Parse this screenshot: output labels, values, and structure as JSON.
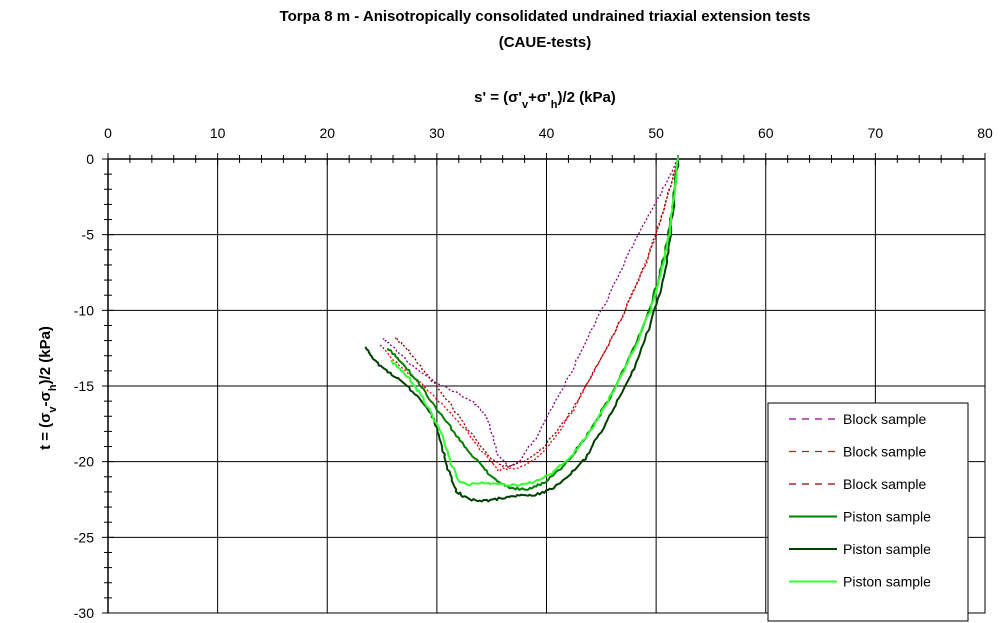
{
  "chart_data": {
    "type": "line",
    "title_line1": "Torpa 8 m - Anisotropically consolidated undrained triaxial extension tests",
    "title_line2": "(CAUE-tests)",
    "xlabel": "s' = (σ'v+σ'h)/2  (kPa)",
    "ylabel": "t = (σv-σh)/2  (kPa)",
    "xlim": [
      0,
      80
    ],
    "ylim": [
      -30,
      0
    ],
    "x_ticks": [
      "0",
      "10",
      "20",
      "30",
      "40",
      "50",
      "60",
      "70",
      "80"
    ],
    "y_ticks": [
      "0",
      "-5",
      "-10",
      "-15",
      "-20",
      "-25",
      "-30"
    ],
    "x_axis_position": "top",
    "grid": true,
    "legend_position": "bottom-right",
    "series": [
      {
        "name": "Block sample",
        "color": "#8B008B",
        "style": "dashed",
        "x": [
          52.0,
          51.0,
          49.5,
          48.0,
          46.5,
          45.0,
          43.5,
          42.0,
          40.5,
          39.0,
          37.5,
          36.5,
          35.5,
          35.0,
          34.5,
          33.5,
          32.0,
          30.0,
          28.0,
          26.5,
          25.5,
          25.0
        ],
        "y": [
          0.0,
          -1.5,
          -3.5,
          -5.5,
          -7.8,
          -10.0,
          -12.2,
          -14.5,
          -16.5,
          -18.5,
          -20.0,
          -20.3,
          -19.5,
          -18.0,
          -17.0,
          -16.2,
          -15.5,
          -14.8,
          -13.8,
          -12.8,
          -12.1,
          -11.8
        ]
      },
      {
        "name": "Block sample",
        "color": "#FF0000",
        "style": "dashed",
        "x": [
          52.0,
          51.0,
          50.0,
          48.5,
          47.0,
          45.5,
          44.0,
          42.5,
          41.0,
          39.5,
          38.0,
          36.5,
          35.5,
          35.0,
          34.0,
          32.5,
          30.5,
          28.5,
          26.8,
          25.5,
          24.8
        ],
        "y": [
          0.0,
          -2.5,
          -5.0,
          -7.8,
          -10.3,
          -12.5,
          -14.5,
          -16.5,
          -18.2,
          -19.5,
          -20.3,
          -20.5,
          -20.5,
          -20.0,
          -19.2,
          -17.8,
          -16.2,
          -14.8,
          -13.8,
          -12.8,
          -12.2
        ]
      },
      {
        "name": "Block sample",
        "color": "#8B0000",
        "style": "dashed",
        "x": [
          52.0,
          51.3,
          50.2,
          49.0,
          47.5,
          46.0,
          44.5,
          43.0,
          41.5,
          40.0,
          38.5,
          37.0,
          36.0,
          35.0,
          33.5,
          32.0,
          30.5,
          29.0,
          27.8,
          26.8,
          26.2
        ],
        "y": [
          0.0,
          -1.8,
          -4.5,
          -7.0,
          -9.5,
          -11.8,
          -13.8,
          -15.8,
          -17.5,
          -18.8,
          -19.8,
          -20.2,
          -20.3,
          -19.8,
          -18.5,
          -17.0,
          -15.5,
          -14.2,
          -13.0,
          -12.2,
          -11.8
        ]
      },
      {
        "name": "Piston sample",
        "color": "#008000",
        "style": "solid",
        "x": [
          52.0,
          51.5,
          51.0,
          50.2,
          49.0,
          47.5,
          46.0,
          44.5,
          43.0,
          41.5,
          40.0,
          38.5,
          37.0,
          36.0,
          35.0,
          34.0,
          32.5,
          31.0,
          29.5,
          28.0,
          26.5,
          25.5
        ],
        "y": [
          0.0,
          -3.0,
          -5.5,
          -8.0,
          -10.8,
          -13.2,
          -15.5,
          -17.3,
          -19.0,
          -20.3,
          -21.3,
          -21.8,
          -21.8,
          -21.5,
          -21.0,
          -20.2,
          -19.0,
          -17.5,
          -16.0,
          -14.5,
          -13.2,
          -12.5
        ]
      },
      {
        "name": "Piston sample",
        "color": "#004000",
        "style": "solid",
        "x": [
          52.0,
          51.6,
          51.2,
          50.5,
          49.3,
          48.0,
          46.5,
          45.0,
          43.5,
          42.0,
          40.5,
          39.0,
          37.5,
          36.0,
          34.5,
          33.0,
          31.8,
          31.0,
          30.3,
          29.5,
          28.0,
          26.5,
          25.0,
          24.0,
          23.5
        ],
        "y": [
          0.0,
          -3.0,
          -5.8,
          -8.5,
          -11.3,
          -13.8,
          -16.0,
          -18.0,
          -19.8,
          -21.0,
          -21.8,
          -22.2,
          -22.2,
          -22.4,
          -22.6,
          -22.5,
          -22.0,
          -20.5,
          -18.5,
          -16.8,
          -15.5,
          -14.5,
          -13.8,
          -13.0,
          -12.4
        ]
      },
      {
        "name": "Piston sample",
        "color": "#33FF33",
        "style": "solid",
        "x": [
          52.0,
          51.6,
          51.2,
          50.5,
          49.5,
          48.0,
          46.5,
          45.0,
          43.5,
          42.0,
          40.5,
          39.0,
          37.5,
          36.0,
          34.5,
          33.0,
          32.0,
          31.2,
          30.5,
          29.5,
          28.5,
          27.5,
          26.5,
          25.8
        ],
        "y": [
          0.0,
          -2.5,
          -5.0,
          -7.5,
          -10.0,
          -12.5,
          -14.8,
          -16.8,
          -18.5,
          -19.8,
          -20.8,
          -21.3,
          -21.6,
          -21.5,
          -21.4,
          -21.5,
          -21.3,
          -20.0,
          -18.3,
          -16.8,
          -15.5,
          -14.5,
          -13.8,
          -13.3
        ]
      }
    ]
  }
}
